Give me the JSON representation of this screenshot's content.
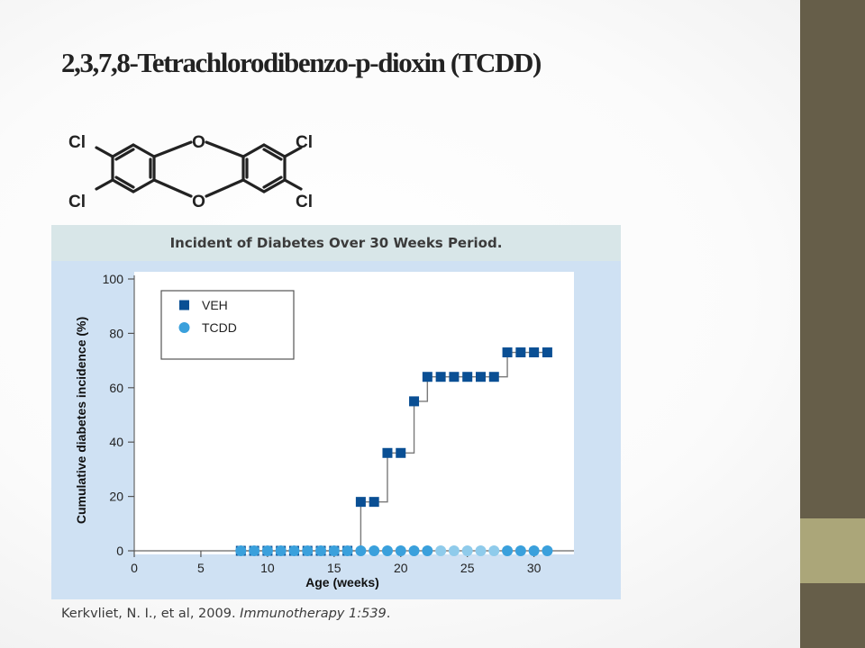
{
  "slide": {
    "title": "2,3,7,8-Tetrachlorodibenzo-p-dioxin (TCDD)",
    "citation_authors": "Kerkvliet, N. I., et al, 2009. ",
    "citation_journal": "Immunotherapy 1:539",
    "citation_end": "."
  },
  "molecule": {
    "substituent_label": "Cl",
    "bridge_label": "O"
  },
  "colors": {
    "sidebar": "#665e49",
    "accent": "#aba679",
    "veh": "#0a4f94",
    "tcdd": "#3aa0dc",
    "panel": "#cfe1f3",
    "header": "#d8e6e8"
  },
  "chart_data": {
    "type": "scatter",
    "title": "Incident of Diabetes Over 30 Weeks Period.",
    "xlabel": "Age (weeks)",
    "ylabel": "Cumulative diabetes incidence (%)",
    "xlim": [
      0,
      33
    ],
    "ylim": [
      0,
      100
    ],
    "xticks": [
      0,
      5,
      10,
      15,
      20,
      25,
      30
    ],
    "yticks": [
      0,
      20,
      40,
      60,
      80,
      100
    ],
    "grid": false,
    "legend_position": "top-left",
    "series": [
      {
        "name": "VEH",
        "marker": "square",
        "step": true,
        "x": [
          8,
          9,
          10,
          11,
          12,
          13,
          14,
          15,
          16,
          17,
          18,
          19,
          20,
          21,
          22,
          23,
          24,
          25,
          26,
          27,
          28,
          29,
          30,
          31
        ],
        "y": [
          0,
          0,
          0,
          0,
          0,
          0,
          0,
          0,
          0,
          18,
          18,
          36,
          36,
          55,
          64,
          64,
          64,
          64,
          64,
          64,
          73,
          73,
          73,
          73
        ]
      },
      {
        "name": "TCDD",
        "marker": "circle",
        "x": [
          8,
          9,
          10,
          11,
          12,
          13,
          14,
          15,
          16,
          17,
          18,
          19,
          20,
          21,
          22,
          23,
          24,
          25,
          26,
          27,
          28,
          29,
          30,
          31
        ],
        "y": [
          0,
          0,
          0,
          0,
          0,
          0,
          0,
          0,
          0,
          0,
          0,
          0,
          0,
          0,
          0,
          0,
          0,
          0,
          0,
          0,
          0,
          0,
          0,
          0
        ]
      }
    ]
  }
}
